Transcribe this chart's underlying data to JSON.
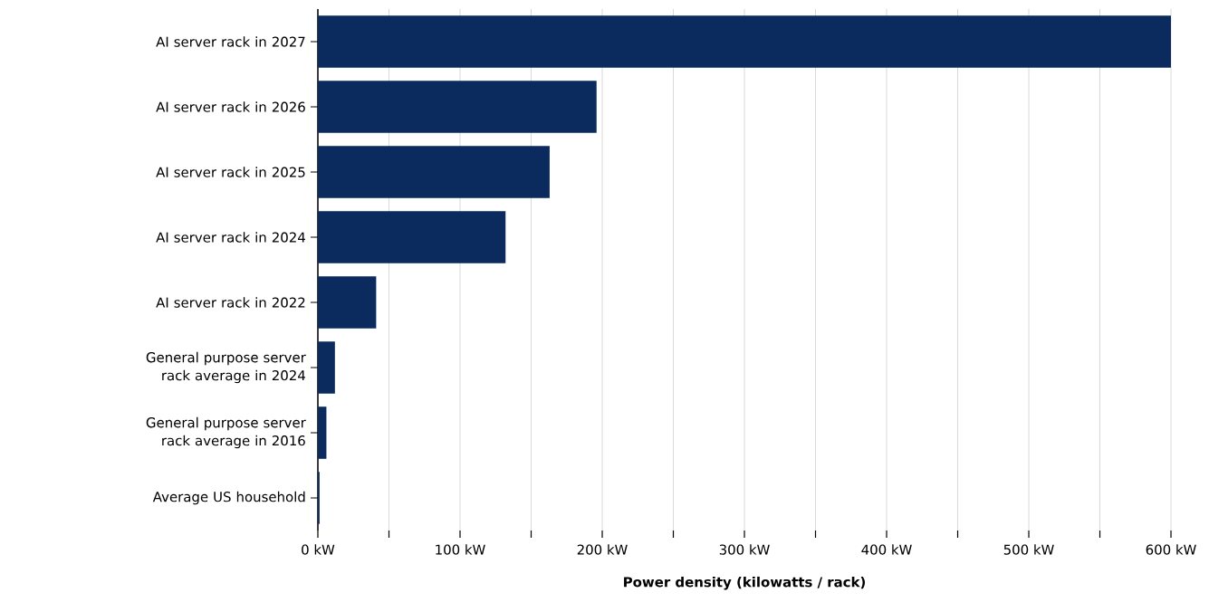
{
  "chart_data": {
    "type": "bar",
    "orientation": "horizontal",
    "xlabel": "Power density (kilowatts / rack)",
    "categories": [
      "AI server rack in 2027",
      "AI server rack in 2026",
      "AI server rack in 2025",
      "AI server rack in 2024",
      "AI server rack in 2022",
      "General purpose server rack average in 2024",
      "General purpose server rack average in 2016",
      "Average US household"
    ],
    "values": [
      600,
      196,
      163,
      132,
      41,
      12,
      6,
      1.2
    ],
    "color": "#0b2b5e",
    "xlim": [
      0,
      600
    ],
    "xticks": [
      {
        "value": 0,
        "label": "0 kW"
      },
      {
        "value": 50,
        "label": null
      },
      {
        "value": 100,
        "label": "100 kW"
      },
      {
        "value": 150,
        "label": null
      },
      {
        "value": 200,
        "label": "200 kW"
      },
      {
        "value": 250,
        "label": null
      },
      {
        "value": 300,
        "label": "300 kW"
      },
      {
        "value": 350,
        "label": null
      },
      {
        "value": 400,
        "label": "400 kW"
      },
      {
        "value": 450,
        "label": null
      },
      {
        "value": 500,
        "label": "500 kW"
      },
      {
        "value": 550,
        "label": null
      },
      {
        "value": 600,
        "label": "600 kW"
      }
    ],
    "grid": "x"
  }
}
